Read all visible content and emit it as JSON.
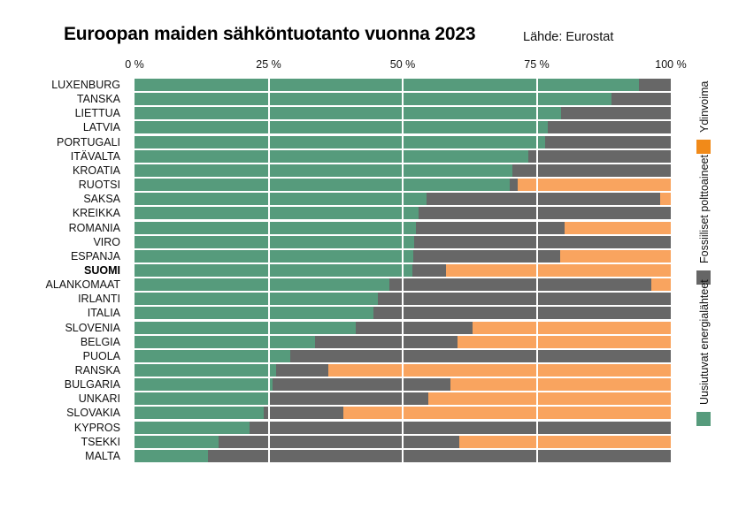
{
  "header": {
    "title": "Euroopan maiden sähköntuotanto vuonna 2023",
    "source": "Lähde: Eurostat"
  },
  "colors": {
    "renewables_bar": "#569B7C",
    "fossil_bar": "#676767",
    "nuclear_bar": "#F9A45F",
    "renewables_legend": "#569B7C",
    "fossil_legend": "#666666",
    "nuclear_legend": "#F18A19",
    "gridline": "#FFFFFF",
    "background": "#FFFFFF"
  },
  "chart_data": {
    "type": "bar",
    "orientation": "horizontal",
    "stacked": true,
    "unit": "%",
    "title": "Euroopan maiden sähköntuotanto vuonna 2023",
    "source": "Lähde: Eurostat",
    "xlim": [
      0,
      100
    ],
    "x_ticks": [
      "0 %",
      "25 %",
      "50 %",
      "75 %",
      "100 %"
    ],
    "x_tick_values": [
      0,
      25,
      50,
      75,
      100
    ],
    "grid": "vertical-white-over-bars",
    "legend_position": "right-rotated",
    "emphasized_category": "SUOMI",
    "categories": [
      "LUXENBURG",
      "TANSKA",
      "LIETTUA",
      "LATVIA",
      "PORTUGALI",
      "ITÄVALTA",
      "KROATIA",
      "RUOTSI",
      "SAKSA",
      "KREIKKA",
      "ROMANIA",
      "VIRO",
      "ESPANJA",
      "SUOMI",
      "ALANKOMAAT",
      "IRLANTI",
      "ITALIA",
      "SLOVENIA",
      "BELGIA",
      "PUOLA",
      "RANSKA",
      "BULGARIA",
      "UNKARI",
      "SLOVAKIA",
      "KYPROS",
      "TSEKKI",
      "MALTA"
    ],
    "series": [
      {
        "name": "Uusiutuvat energialähteet",
        "color": "#569B7C",
        "values": [
          94,
          89,
          79.5,
          77,
          76.5,
          73.5,
          70.5,
          70,
          54.5,
          53,
          52.5,
          52.2,
          52,
          51.8,
          47.5,
          45.4,
          44.6,
          41.3,
          33.7,
          29,
          26.4,
          25.7,
          25.3,
          24.1,
          21.5,
          15.7,
          13.7
        ]
      },
      {
        "name": "Fossiiliset polttoaineet",
        "color": "#676767",
        "values": [
          6,
          11,
          20.5,
          23,
          23.5,
          26.5,
          29.5,
          1.5,
          43.5,
          47,
          27.7,
          47.8,
          27.4,
          6.3,
          48.8,
          54.6,
          55.4,
          21.7,
          26.5,
          71,
          9.7,
          33.2,
          29.5,
          14.8,
          78.5,
          44.9,
          86.3
        ]
      },
      {
        "name": "Ydinvoima",
        "color": "#F9A45F",
        "values": [
          0,
          0,
          0,
          0,
          0,
          0,
          0,
          28.5,
          2,
          0,
          19.8,
          0,
          20.6,
          41.9,
          3.7,
          0,
          0,
          37,
          39.8,
          0,
          63.9,
          41.1,
          45.2,
          61.1,
          0,
          39.4,
          0
        ]
      }
    ],
    "legend": [
      {
        "label": "Ydinvoima",
        "color": "#F18A19"
      },
      {
        "label": "Fossiiliset polttoaineet",
        "color": "#666666"
      },
      {
        "label": "Uusiutuvat energialähteet",
        "color": "#569B7C"
      }
    ]
  }
}
